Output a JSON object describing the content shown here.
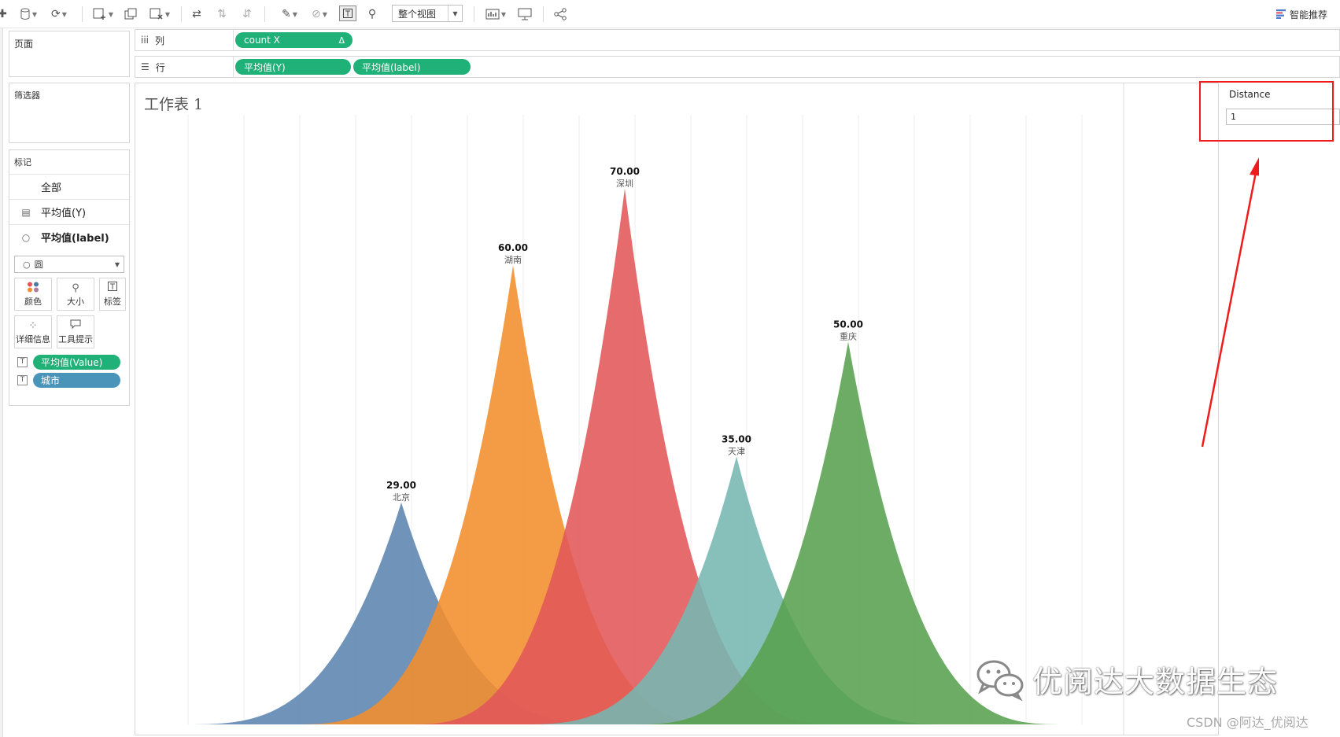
{
  "toolbar": {
    "view_mode": "整个视图",
    "smart_recommend": "智能推荐"
  },
  "panels": {
    "pages": "页面",
    "filters": "筛选器",
    "marks": "标记"
  },
  "marks_card": {
    "all": "全部",
    "layer1": "平均值(Y)",
    "layer2": "平均值(label)",
    "mark_type": "圆",
    "buttons": {
      "color": "颜色",
      "size": "大小",
      "label": "标签",
      "detail": "详细信息",
      "tooltip": "工具提示"
    },
    "fields": [
      {
        "label": "平均值(Value)",
        "color": "#1fb177"
      },
      {
        "label": "城市",
        "color": "#4a94ba"
      }
    ]
  },
  "shelves": {
    "columns_label": "列",
    "rows_label": "行",
    "column_pills": [
      {
        "label": "count X",
        "delta": "Δ"
      }
    ],
    "row_pills": [
      {
        "label": "平均值(Y)"
      },
      {
        "label": "平均值(label)"
      }
    ]
  },
  "worksheet": {
    "title": "工作表 1"
  },
  "parameter": {
    "title": "Distance",
    "value": "1"
  },
  "watermark": {
    "text": "优阅达大数据生态",
    "credit": "CSDN @阿达_优阅达"
  },
  "chart_data": {
    "type": "area",
    "series": [
      {
        "name": "北京",
        "value": 29.0,
        "value_label": "29.00",
        "color": "#5c84b1"
      },
      {
        "name": "湖南",
        "value": 60.0,
        "value_label": "60.00",
        "color": "#f28e2b"
      },
      {
        "name": "深圳",
        "value": 70.0,
        "value_label": "70.00",
        "color": "#e15759"
      },
      {
        "name": "天津",
        "value": 35.0,
        "value_label": "35.00",
        "color": "#76b7b2"
      },
      {
        "name": "重庆",
        "value": 50.0,
        "value_label": "50.00",
        "color": "#59a14f"
      }
    ],
    "grid": "vertical",
    "legend": "none"
  }
}
